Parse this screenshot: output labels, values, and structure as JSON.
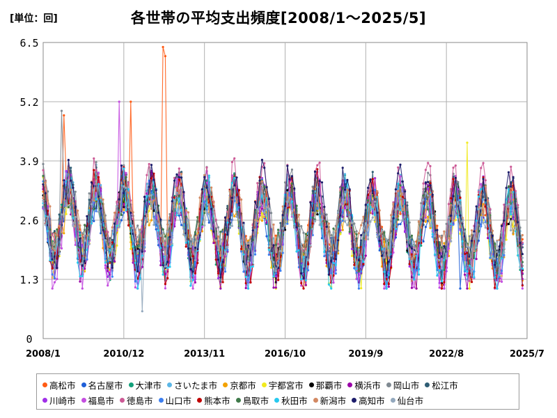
{
  "chart_data": {
    "type": "line",
    "title": "各世帯の平均支出頻度[2008/1～2025/5]",
    "unit_label": "[単位：回]",
    "xlabel": "",
    "ylabel": "",
    "x_range": [
      "2008-01",
      "2025-07"
    ],
    "x_ticks": [
      "2008/1",
      "2010/12",
      "2013/11",
      "2016/10",
      "2019/9",
      "2022/8",
      "2025/7"
    ],
    "y_ticks": [
      "0",
      "1.3",
      "2.6",
      "3.9",
      "5.2",
      "6.5"
    ],
    "ylim": [
      0,
      6.5
    ],
    "grid": true,
    "legend_position": "bottom",
    "series": [
      {
        "name": "高松市",
        "color": "#ff5b14",
        "peak_values": [
          {
            "x": "2012-05",
            "y": 6.4
          },
          {
            "x": "2012-06",
            "y": 6.2
          },
          {
            "x": "2011-03",
            "y": 5.2
          },
          {
            "x": "2008-10",
            "y": 4.9
          }
        ]
      },
      {
        "name": "名古屋市",
        "color": "#1f5fd8",
        "low_values": [
          {
            "x": "2023-02",
            "y": 1.1
          }
        ]
      },
      {
        "name": "大津市",
        "color": "#12a07a"
      },
      {
        "name": "さいたま市",
        "color": "#5bb6e6"
      },
      {
        "name": "京都市",
        "color": "#f3a200"
      },
      {
        "name": "宇都宮市",
        "color": "#f1ea1e",
        "peak_values": [
          {
            "x": "2023-05",
            "y": 4.3
          }
        ]
      },
      {
        "name": "那覇市",
        "color": "#000000"
      },
      {
        "name": "横浜市",
        "color": "#9a00a8"
      },
      {
        "name": "岡山市",
        "color": "#808a92",
        "peak_values": [
          {
            "x": "2008-09",
            "y": 5.0
          }
        ]
      },
      {
        "name": "松江市",
        "color": "#2e5d74"
      },
      {
        "name": "川崎市",
        "color": "#a030e8"
      },
      {
        "name": "福島市",
        "color": "#c44ee0",
        "peak_values": [
          {
            "x": "2010-10",
            "y": 5.2
          }
        ]
      },
      {
        "name": "徳島市",
        "color": "#cc5a96"
      },
      {
        "name": "山口市",
        "color": "#3d7ff0"
      },
      {
        "name": "熊本市",
        "color": "#c00000"
      },
      {
        "name": "鳥取市",
        "color": "#3f7a4a"
      },
      {
        "name": "秋田市",
        "color": "#27c9ef"
      },
      {
        "name": "新潟市",
        "color": "#d38963"
      },
      {
        "name": "高知市",
        "color": "#1d1d6b"
      },
      {
        "name": "仙台市",
        "color": "#93a8bd",
        "low_values": [
          {
            "x": "2011-08",
            "y": 0.6
          }
        ]
      }
    ],
    "series_statistics": {
      "typical_range": [
        1.3,
        4.5
      ],
      "typical_center": 2.6,
      "seasonal_peak_month": "12",
      "seasonal_trough_month": "02"
    }
  }
}
